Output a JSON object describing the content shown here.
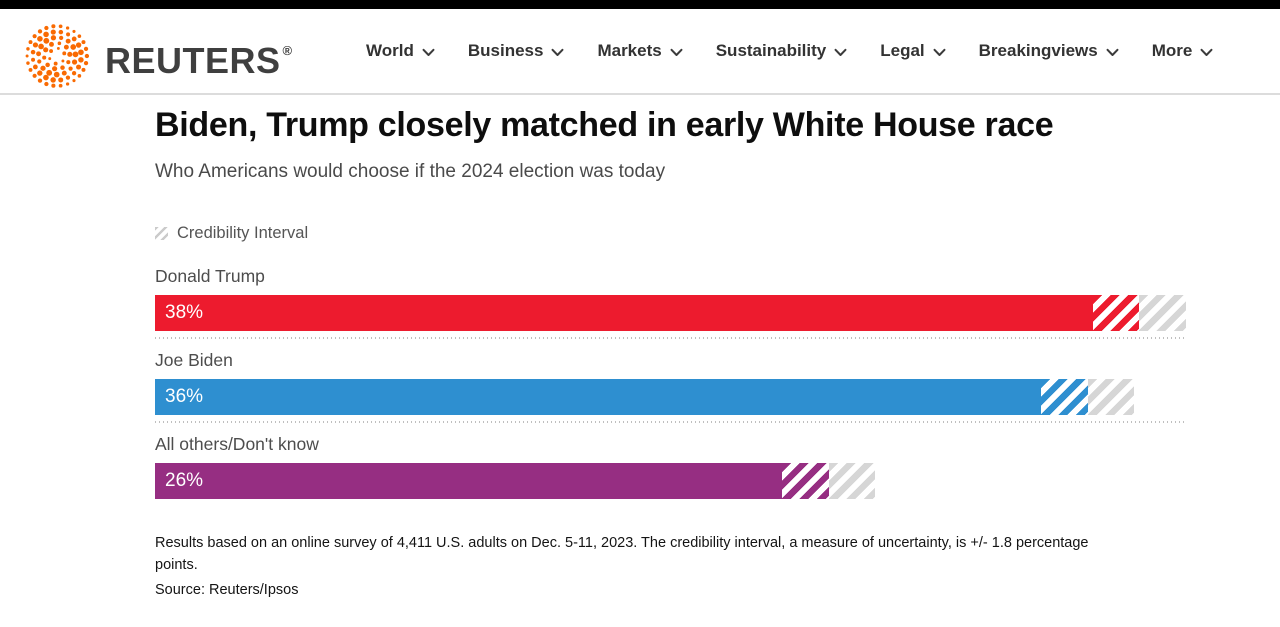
{
  "header": {
    "brand": "REUTERS",
    "brand_mark": "®",
    "logo_color": "#f96a02",
    "nav": [
      {
        "label": "World"
      },
      {
        "label": "Business"
      },
      {
        "label": "Markets"
      },
      {
        "label": "Sustainability"
      },
      {
        "label": "Legal"
      },
      {
        "label": "Breakingviews"
      },
      {
        "label": "More"
      }
    ]
  },
  "article": {
    "title": "Biden, Trump closely matched in early White House race",
    "subtitle": "Who Americans would choose if the 2024 election was today"
  },
  "chart_data": {
    "type": "bar",
    "orientation": "horizontal",
    "title": "Biden, Trump closely matched in early White House race",
    "subtitle": "Who Americans would choose if the 2024 election was today",
    "legend": {
      "label": "Credibility Interval",
      "position": "top-left"
    },
    "categories": [
      "Donald Trump",
      "Joe Biden",
      "All others/Don't know"
    ],
    "values": [
      38,
      36,
      26
    ],
    "value_labels": [
      "38%",
      "36%",
      "26%"
    ],
    "credibility_interval": 1.8,
    "bar_colors": [
      "#ed1b2e",
      "#2e8fd0",
      "#962e82"
    ],
    "ci_outer_hatch_color": "#d6d6d6",
    "xlim": [
      0,
      39.8
    ],
    "grid": false
  },
  "footer": {
    "notes": "Results based on an online survey of 4,411 U.S. adults on Dec. 5-11, 2023. The credibility interval, a measure of uncertainty, is +/- 1.8 percentage points.",
    "source": "Source: Reuters/Ipsos"
  }
}
